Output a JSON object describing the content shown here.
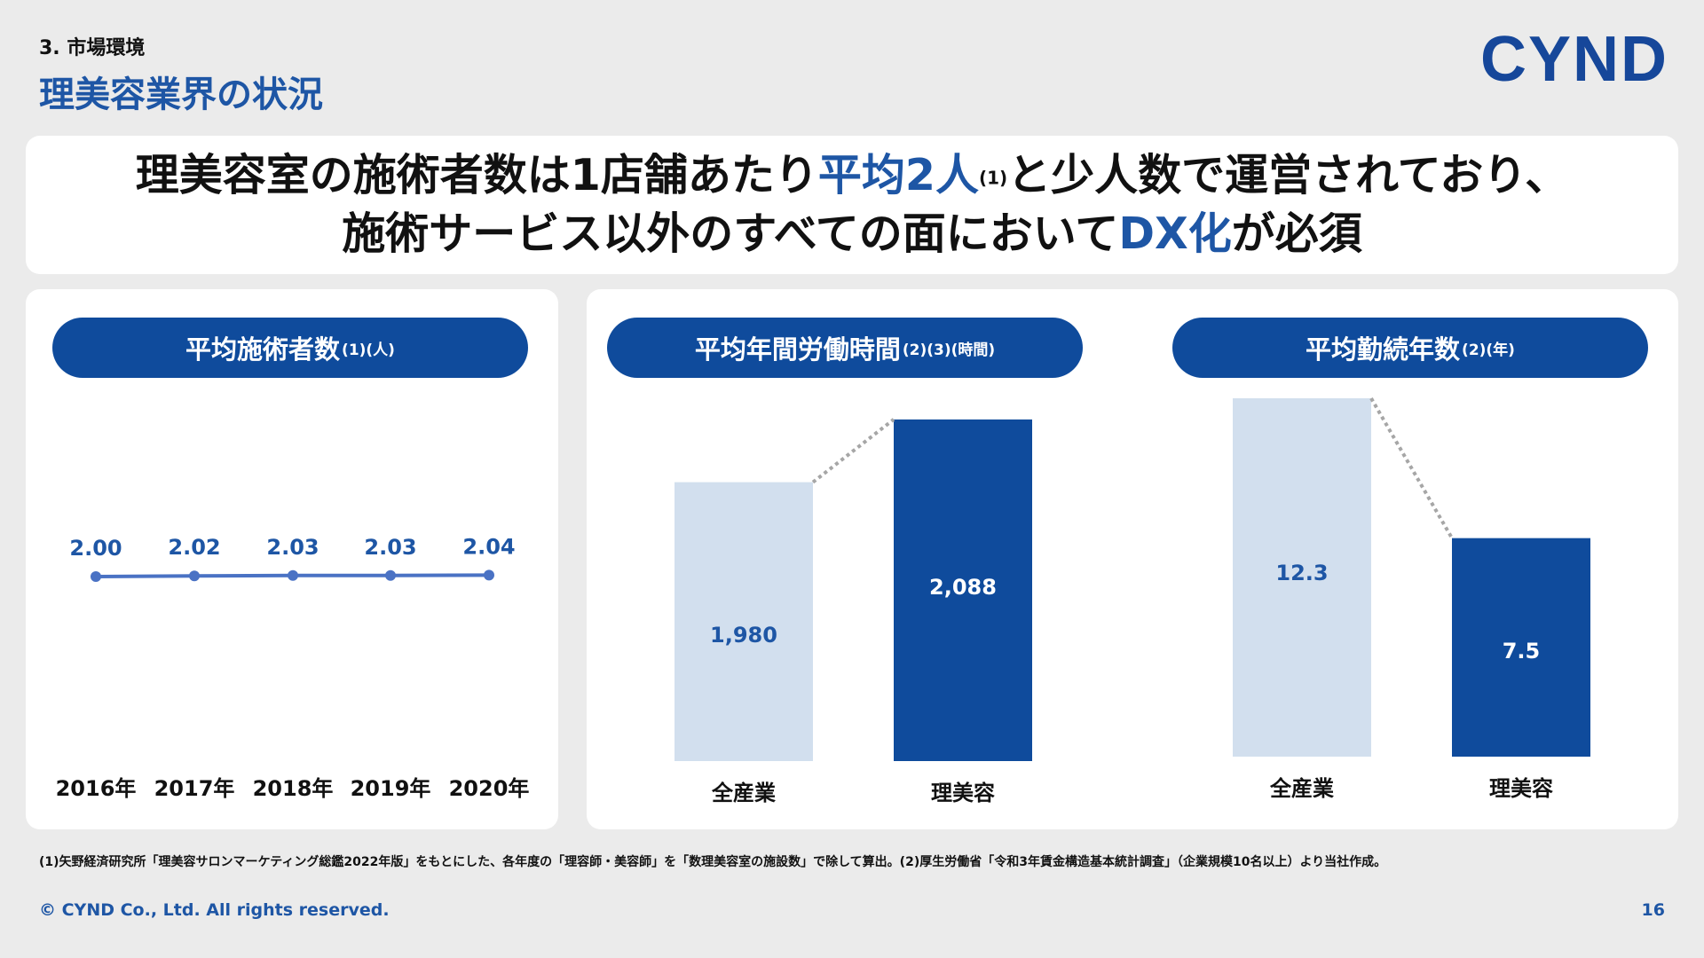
{
  "header": {
    "section": "3. 市場環境",
    "title": "理美容業界の状況",
    "logo": "CYND"
  },
  "headline": {
    "line1_a": "理美容室の施術者数は1店舗あたり",
    "line1_b": "平均2人",
    "line1_sup": "(1)",
    "line1_c": "と少人数で運営されており、",
    "line2_a": "施術サービス以外のすべての面において",
    "line2_b": "DX化",
    "line2_c": "が必須"
  },
  "pills": {
    "p1_main": "平均施術者数",
    "p1_sub": "(1)(人)",
    "p2_main": "平均年間労働時間",
    "p2_sub": "(2)(3)(時間)",
    "p3_main": "平均勤続年数",
    "p3_sub": "(2)(年)"
  },
  "colors": {
    "primary": "#0f4b9c",
    "accent_blue": "#1e56a5",
    "light_bar": "#d2dfee",
    "line": "#4a72c4"
  },
  "chart_data": [
    {
      "type": "line",
      "title": "平均施術者数(1)(人)",
      "categories": [
        "2016年",
        "2017年",
        "2018年",
        "2019年",
        "2020年"
      ],
      "values": [
        2.0,
        2.02,
        2.03,
        2.03,
        2.04
      ],
      "value_labels": [
        "2.00",
        "2.02",
        "2.03",
        "2.03",
        "2.04"
      ],
      "ylim": [
        1.2,
        2.8
      ],
      "grid": false
    },
    {
      "type": "bar",
      "title": "平均年間労働時間(2)(3)(時間)",
      "categories": [
        "全産業",
        "理美容"
      ],
      "values": [
        1980,
        2088
      ],
      "value_labels": [
        "1,980",
        "2,088"
      ],
      "ylim": [
        1500,
        2100
      ],
      "grid": false
    },
    {
      "type": "bar",
      "title": "平均勤続年数(2)(年)",
      "categories": [
        "全産業",
        "理美容"
      ],
      "values": [
        12.3,
        7.5
      ],
      "value_labels": [
        "12.3",
        "7.5"
      ],
      "ylim": [
        0,
        12.3
      ],
      "grid": false
    }
  ],
  "footer": {
    "footnote": "(1)矢野経済研究所「理美容サロンマーケティング総鑑2022年版」をもとにした、各年度の「理容師・美容師」を「数理美容室の施設数」で除して算出。(2)厚生労働省「令和3年賃金構造基本統計調査」（企業規模10名以上）より当社作成。",
    "copyright": "© CYND Co., Ltd. All rights reserved.",
    "page": "16"
  }
}
